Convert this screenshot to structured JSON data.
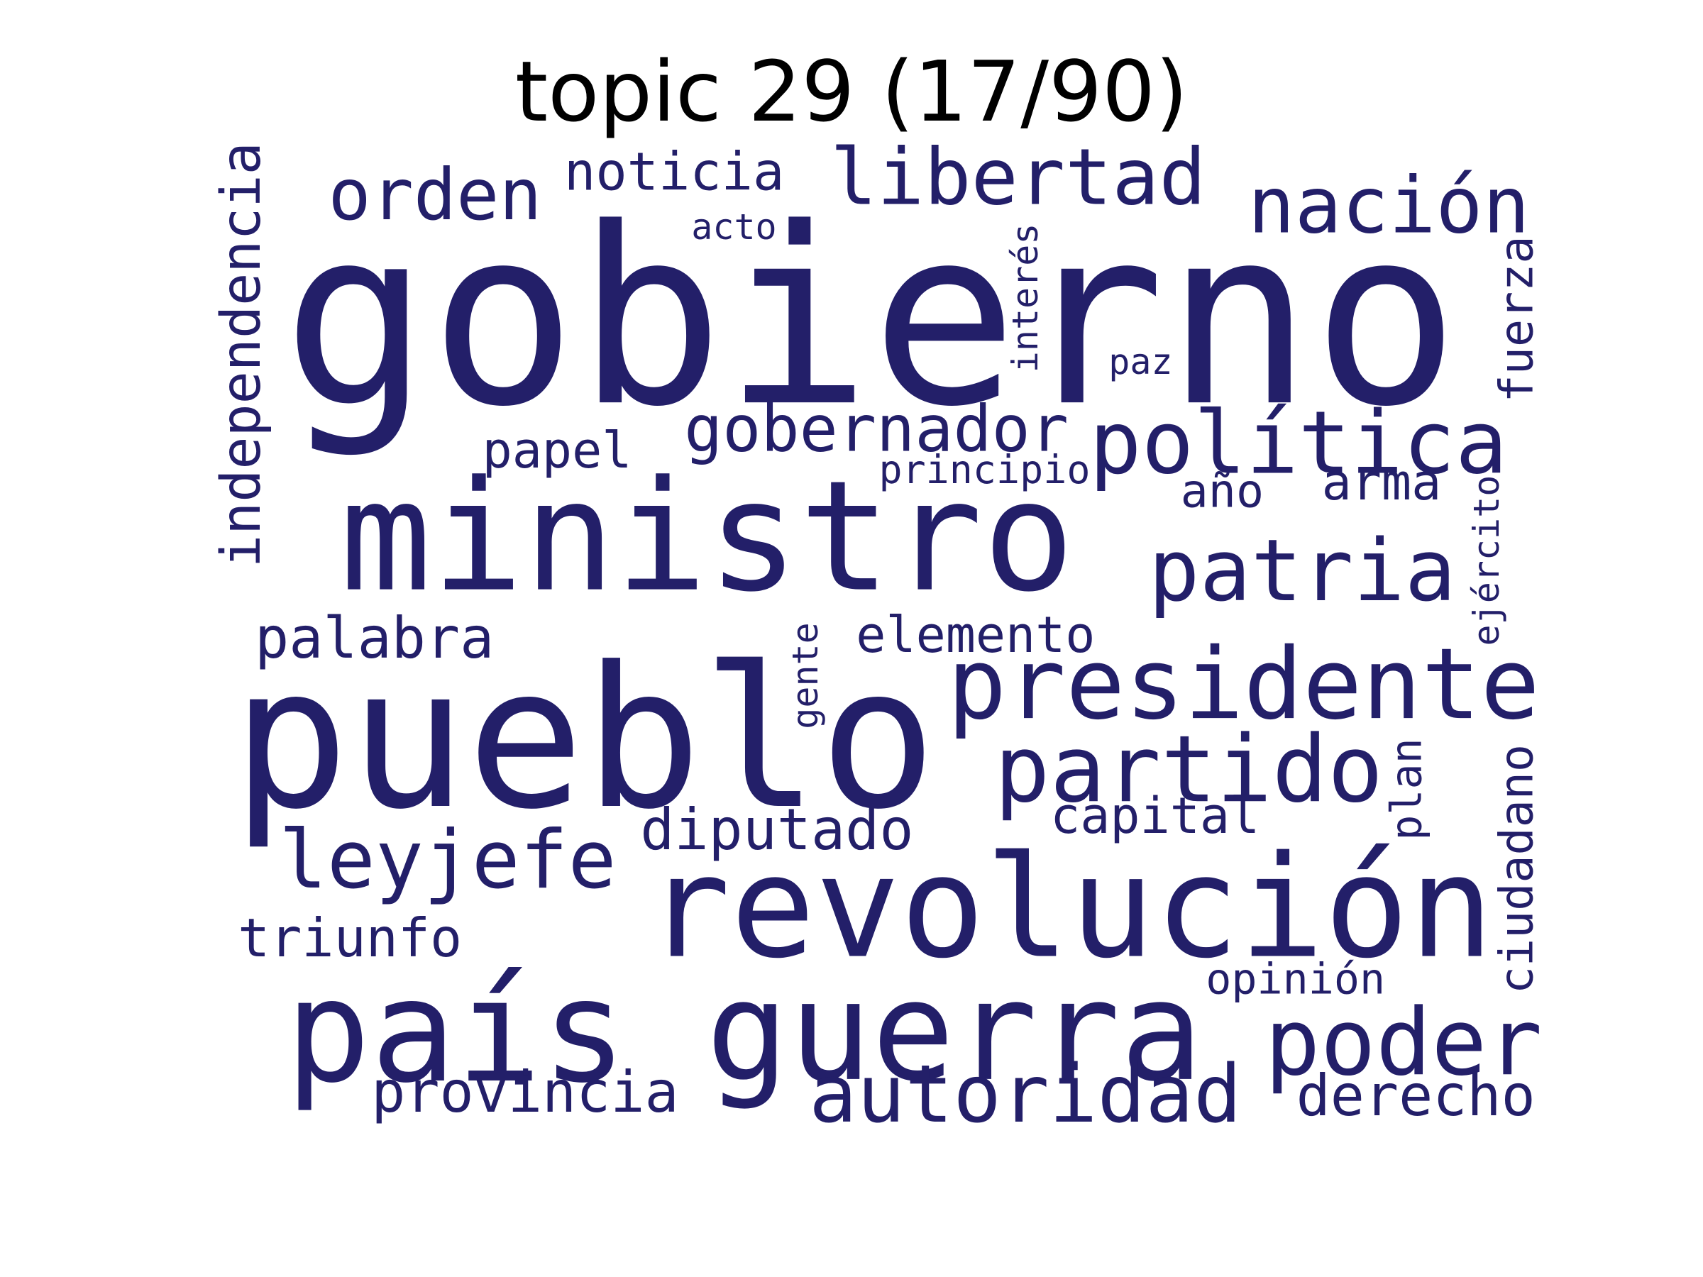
{
  "title": "topic 29 (17/90)",
  "word_color": "#231f69",
  "words": [
    {
      "text": "gobierno",
      "orientation": "horizontal"
    },
    {
      "text": "ministro",
      "orientation": "horizontal"
    },
    {
      "text": "pueblo",
      "orientation": "horizontal"
    },
    {
      "text": "revolución",
      "orientation": "horizontal"
    },
    {
      "text": "país",
      "orientation": "horizontal"
    },
    {
      "text": "guerra",
      "orientation": "horizontal"
    },
    {
      "text": "presidente",
      "orientation": "horizontal"
    },
    {
      "text": "política",
      "orientation": "horizontal"
    },
    {
      "text": "patria",
      "orientation": "horizontal"
    },
    {
      "text": "partido",
      "orientation": "horizontal"
    },
    {
      "text": "poder",
      "orientation": "horizontal"
    },
    {
      "text": "autoridad",
      "orientation": "horizontal"
    },
    {
      "text": "libertad",
      "orientation": "horizontal"
    },
    {
      "text": "nación",
      "orientation": "horizontal"
    },
    {
      "text": "orden",
      "orientation": "horizontal"
    },
    {
      "text": "leyjefe",
      "orientation": "horizontal"
    },
    {
      "text": "gobernador",
      "orientation": "horizontal"
    },
    {
      "text": "palabra",
      "orientation": "horizontal"
    },
    {
      "text": "independencia",
      "orientation": "vertical"
    },
    {
      "text": "diputado",
      "orientation": "horizontal"
    },
    {
      "text": "provincia",
      "orientation": "horizontal"
    },
    {
      "text": "noticia",
      "orientation": "horizontal"
    },
    {
      "text": "triunfo",
      "orientation": "horizontal"
    },
    {
      "text": "elemento",
      "orientation": "horizontal"
    },
    {
      "text": "capital",
      "orientation": "horizontal"
    },
    {
      "text": "derecho",
      "orientation": "horizontal"
    },
    {
      "text": "papel",
      "orientation": "horizontal"
    },
    {
      "text": "arma",
      "orientation": "horizontal"
    },
    {
      "text": "año",
      "orientation": "horizontal"
    },
    {
      "text": "ciudadano",
      "orientation": "vertical"
    },
    {
      "text": "fuerza",
      "orientation": "vertical"
    },
    {
      "text": "opinión",
      "orientation": "horizontal"
    },
    {
      "text": "plan",
      "orientation": "vertical"
    },
    {
      "text": "ejército",
      "orientation": "vertical"
    },
    {
      "text": "principio",
      "orientation": "horizontal"
    },
    {
      "text": "interés",
      "orientation": "vertical"
    },
    {
      "text": "acto",
      "orientation": "horizontal"
    },
    {
      "text": "paz",
      "orientation": "horizontal"
    },
    {
      "text": "gente",
      "orientation": "vertical"
    }
  ]
}
